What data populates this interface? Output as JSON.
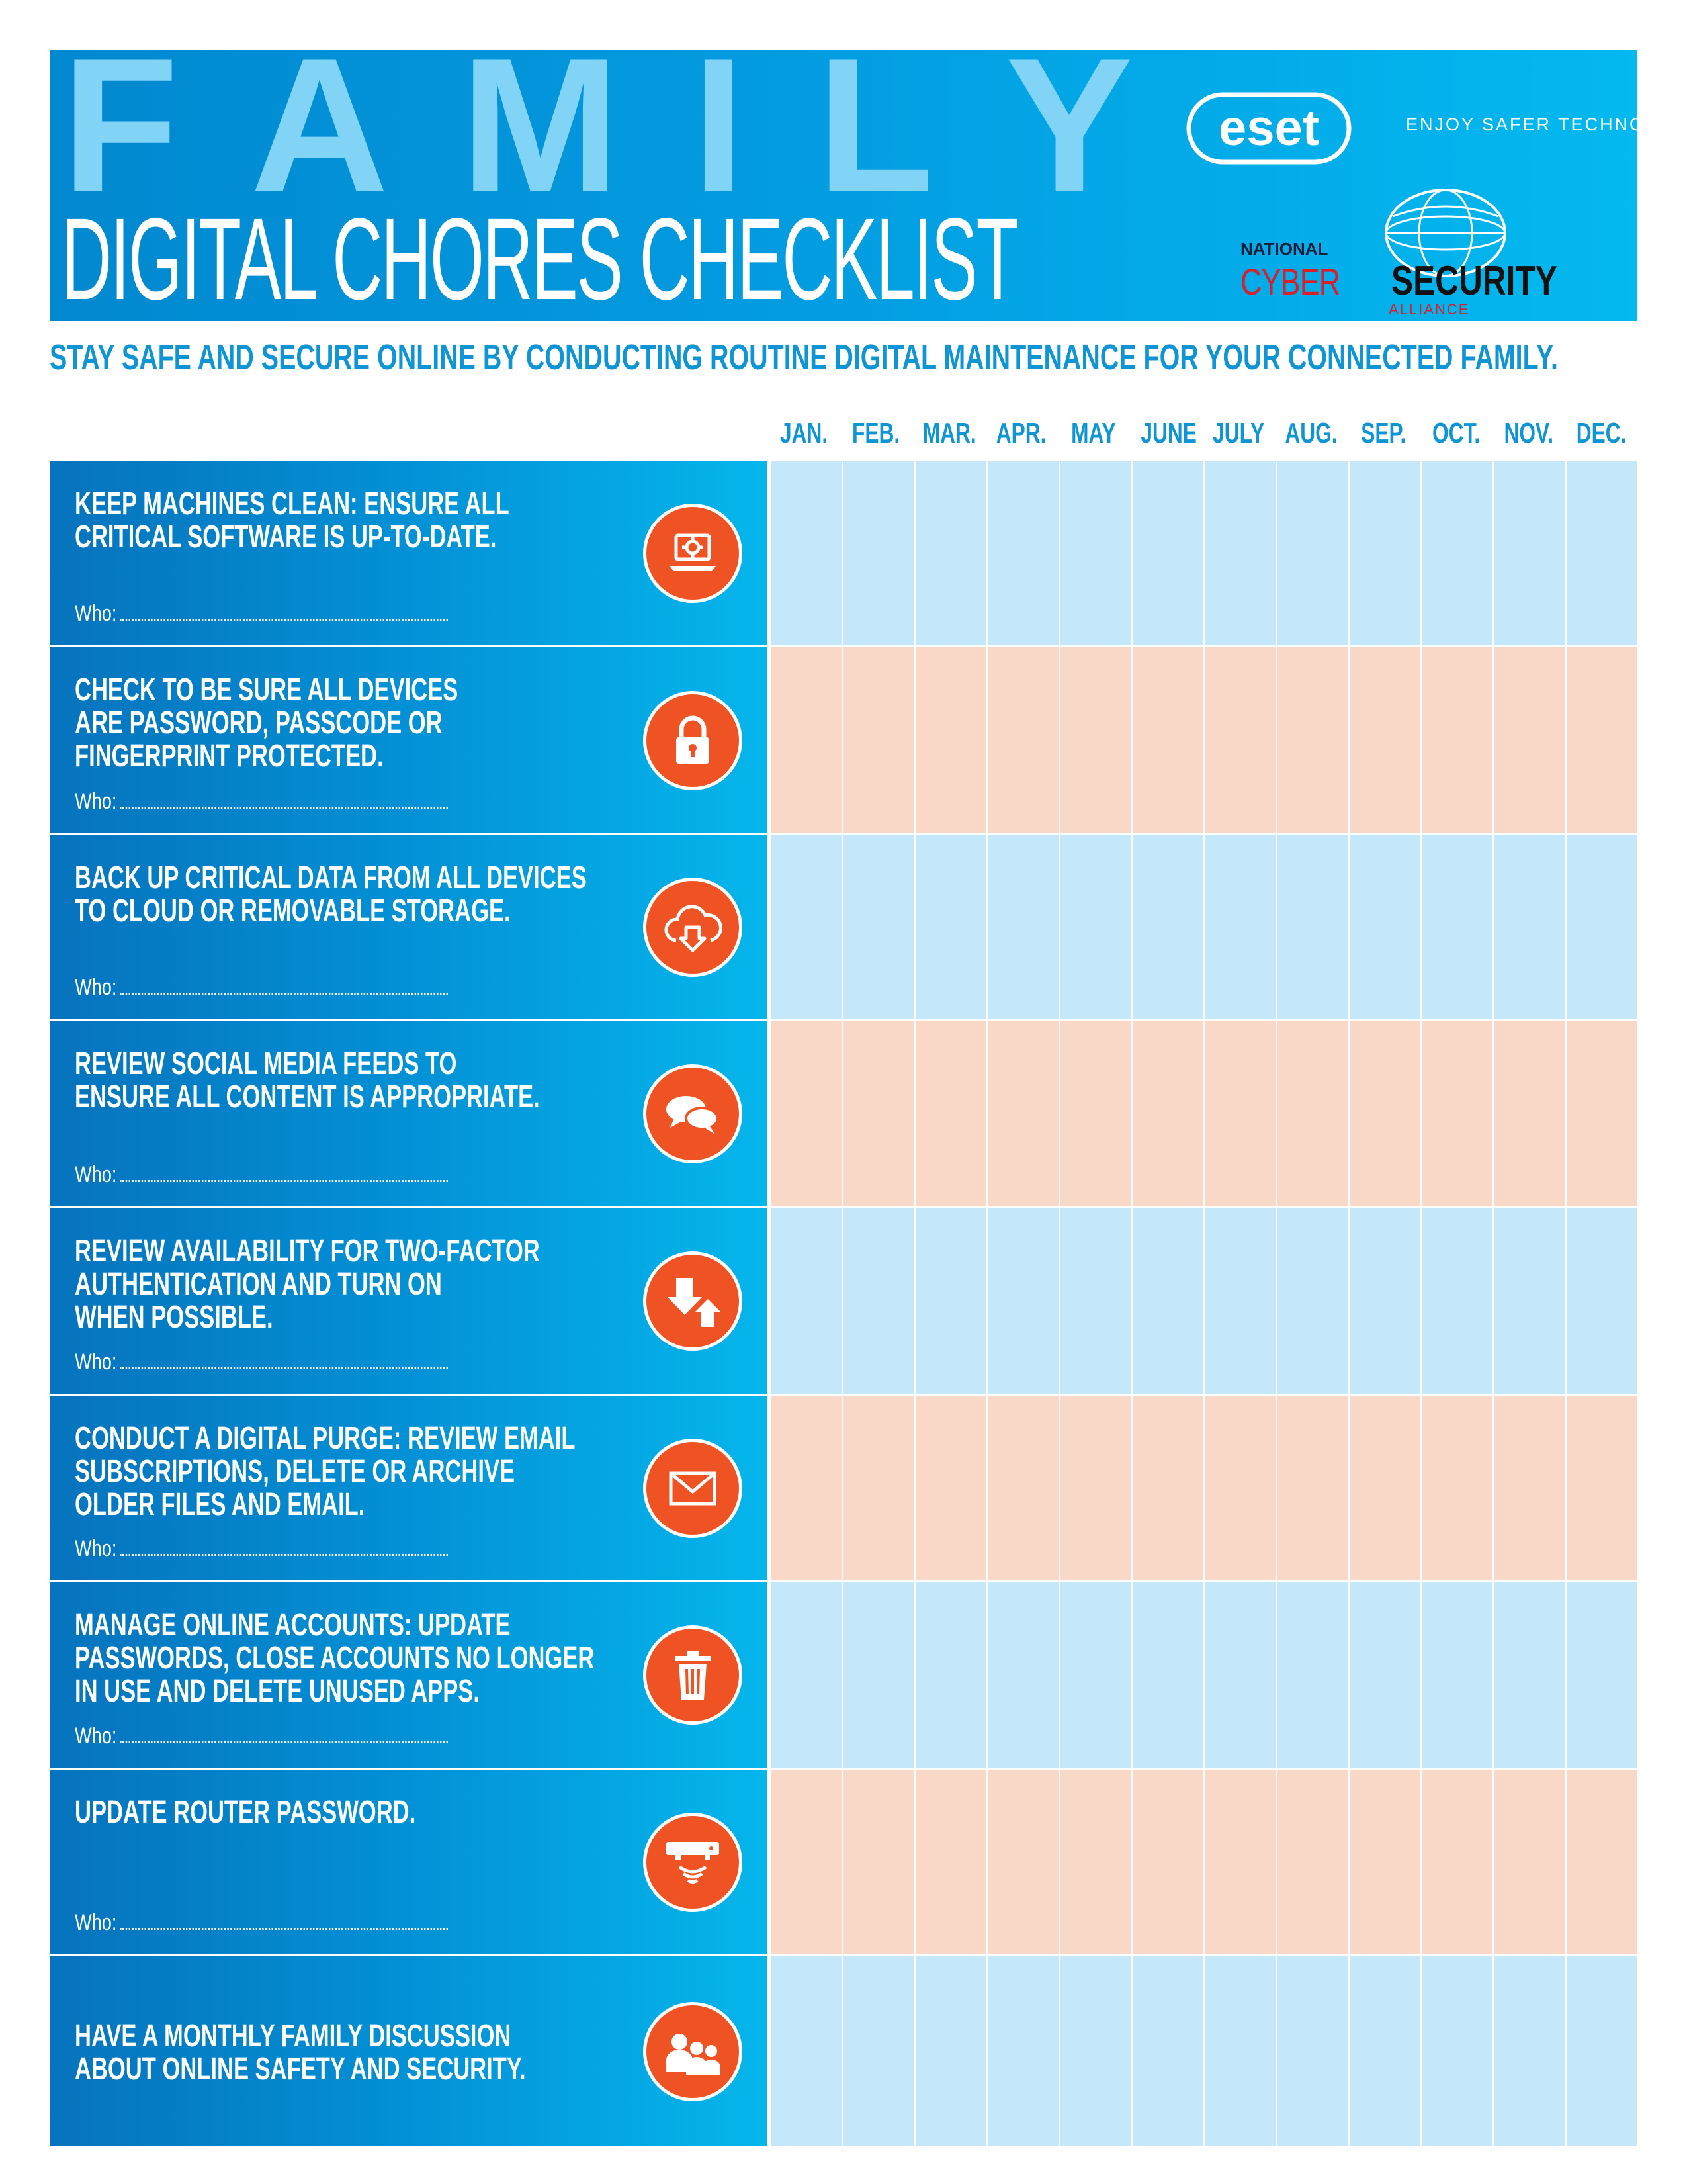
{
  "header": {
    "title_family_letters": [
      "F",
      "A",
      "M",
      "I",
      "L",
      "Y"
    ],
    "title_main": "DIGITAL CHORES CHECKLIST",
    "eset_logo_text": "eset",
    "eset_tagline": "ENJOY SAFER TECHNOLOGY®",
    "ncsa": {
      "national": "NATIONAL",
      "cyber": "CYBER",
      "security": "SECURITY",
      "alliance": "ALLIANCE"
    }
  },
  "subtitle": "STAY SAFE AND SECURE ONLINE BY CONDUCTING ROUTINE DIGITAL MAINTENANCE FOR YOUR CONNECTED FAMILY.",
  "months": [
    "JAN.",
    "FEB.",
    "MAR.",
    "APR.",
    "MAY",
    "JUNE",
    "JULY",
    "AUG.",
    "SEP.",
    "OCT.",
    "NOV.",
    "DEC."
  ],
  "who_label": "Who:",
  "colors": {
    "accent_orange": "#ef5324",
    "cell_blue": "#c4e8f9",
    "cell_peach": "#fad8c7",
    "text_blue": "#0f95d6"
  },
  "tasks": [
    {
      "text": "KEEP MACHINES CLEAN: ENSURE ALL\nCRITICAL SOFTWARE IS UP-TO-DATE.",
      "icon": "laptop-gear-icon",
      "tone": "blue",
      "has_who": true
    },
    {
      "text": "CHECK TO BE SURE ALL DEVICES\nARE PASSWORD, PASSCODE OR\nFINGERPRINT PROTECTED.",
      "icon": "padlock-icon",
      "tone": "peach",
      "has_who": true
    },
    {
      "text": "BACK UP CRITICAL DATA FROM ALL DEVICES\nTO CLOUD OR REMOVABLE STORAGE.",
      "icon": "cloud-download-icon",
      "tone": "blue",
      "has_who": true
    },
    {
      "text": "REVIEW SOCIAL MEDIA FEEDS TO\nENSURE ALL CONTENT IS APPROPRIATE.",
      "icon": "chat-bubbles-icon",
      "tone": "peach",
      "has_who": true
    },
    {
      "text": "REVIEW AVAILABILITY FOR TWO-FACTOR\nAUTHENTICATION AND TURN ON\nWHEN POSSIBLE.",
      "icon": "arrows-up-down-icon",
      "tone": "blue",
      "has_who": true
    },
    {
      "text": "CONDUCT A DIGITAL PURGE: REVIEW EMAIL\nSUBSCRIPTIONS, DELETE OR ARCHIVE\nOLDER FILES AND EMAIL.",
      "icon": "envelope-icon",
      "tone": "peach",
      "has_who": true
    },
    {
      "text": "MANAGE ONLINE ACCOUNTS: UPDATE\nPASSWORDS, CLOSE ACCOUNTS NO LONGER\nIN USE AND DELETE UNUSED APPS.",
      "icon": "trash-can-icon",
      "tone": "blue",
      "has_who": true
    },
    {
      "text": "UPDATE ROUTER PASSWORD.",
      "icon": "router-wifi-icon",
      "tone": "peach",
      "has_who": true
    },
    {
      "text": "HAVE A MONTHLY FAMILY DISCUSSION\nABOUT ONLINE SAFETY AND SECURITY.",
      "icon": "family-group-icon",
      "tone": "blue",
      "has_who": false
    }
  ]
}
